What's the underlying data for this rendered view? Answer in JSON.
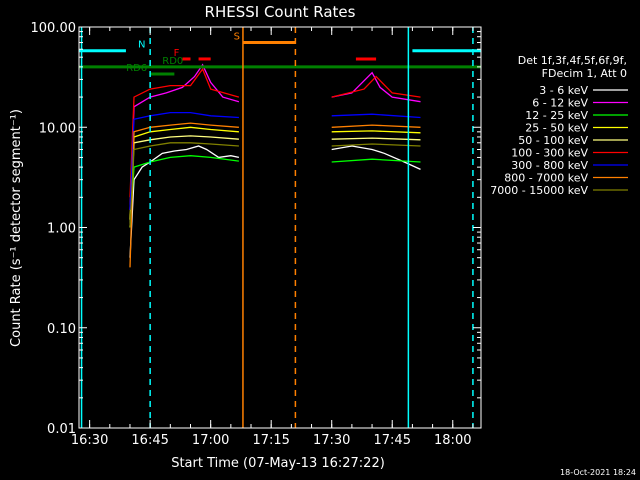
{
  "chart_data": {
    "type": "line",
    "title": "RHESSI Count Rates",
    "xlabel": "Start Time (07-May-13 16:27:22)",
    "ylabel": "Count Rate (s⁻¹ detector segment⁻¹)",
    "yscale": "log",
    "ylim": [
      0.01,
      100
    ],
    "xlim": [
      "16:27:22",
      "18:07:00"
    ],
    "x_ticks": [
      "16:30",
      "16:45",
      "17:00",
      "17:15",
      "17:30",
      "17:45",
      "18:00"
    ],
    "y_ticks": [
      "0.01",
      "0.10",
      "1.00",
      "10.00",
      "100.00"
    ],
    "legend": {
      "header_line1": "Det 1f,3f,4f,5f,6f,9f,",
      "header_line2": "FDecim 1, Att 0",
      "position": "right"
    },
    "series": [
      {
        "name": "3 - 6 keV",
        "color": "#ffffff",
        "x": [
          "16:40",
          "16:41",
          "16:43",
          "16:45",
          "16:48",
          "16:51",
          "16:54",
          "16:57",
          "16:59",
          "17:02",
          "17:05",
          "17:07"
        ],
        "values": [
          0.5,
          3.0,
          4.0,
          4.5,
          5.5,
          5.8,
          6.0,
          6.5,
          6.0,
          5.0,
          5.2,
          5.0
        ]
      },
      {
        "name": "6 - 12 keV",
        "color": "#ff00ff",
        "x": [
          "16:40",
          "16:41",
          "16:45",
          "16:49",
          "16:53",
          "16:56",
          "16:58",
          "17:00",
          "17:03",
          "17:07"
        ],
        "values": [
          1.5,
          16.0,
          20.0,
          22.0,
          25.0,
          32.0,
          42.0,
          28.0,
          20.0,
          18.0
        ]
      },
      {
        "name": "12 - 25 keV",
        "color": "#00ff00",
        "x": [
          "16:40",
          "16:41",
          "16:45",
          "16:50",
          "16:55",
          "17:00",
          "17:07"
        ],
        "values": [
          1.0,
          4.0,
          4.5,
          5.0,
          5.2,
          5.0,
          4.6
        ]
      },
      {
        "name": "25 - 50 keV",
        "color": "#ffff00",
        "x": [
          "16:40",
          "16:41",
          "16:45",
          "16:50",
          "16:55",
          "17:00",
          "17:07"
        ],
        "values": [
          1.2,
          8.0,
          9.0,
          9.5,
          10.0,
          9.5,
          9.0
        ]
      },
      {
        "name": "50 - 100 keV",
        "color": "#ffff80",
        "x": [
          "16:40",
          "16:41",
          "16:45",
          "16:50",
          "16:55",
          "17:00",
          "17:07"
        ],
        "values": [
          1.0,
          7.0,
          7.5,
          8.0,
          8.2,
          8.0,
          7.6
        ]
      },
      {
        "name": "100 - 300 keV",
        "color": "#ff0000",
        "x": [
          "16:40",
          "16:41",
          "16:45",
          "16:50",
          "16:55",
          "16:58",
          "17:00",
          "17:07"
        ],
        "values": [
          2.0,
          20.0,
          24.0,
          26.0,
          26.0,
          38.0,
          24.0,
          20.0
        ]
      },
      {
        "name": "300 - 800 keV",
        "color": "#0000ff",
        "x": [
          "16:40",
          "16:41",
          "16:45",
          "16:50",
          "16:55",
          "17:00",
          "17:07"
        ],
        "values": [
          1.5,
          12.0,
          13.0,
          14.0,
          14.0,
          13.0,
          12.5
        ]
      },
      {
        "name": "800 - 7000 keV",
        "color": "#ff8000",
        "x": [
          "16:40",
          "16:41",
          "16:45",
          "16:50",
          "16:55",
          "17:00",
          "17:07"
        ],
        "values": [
          0.4,
          9.0,
          10.0,
          10.5,
          11.0,
          10.5,
          10.0
        ]
      },
      {
        "name": "7000 - 15000 keV",
        "color": "#808000",
        "x": [
          "16:40",
          "16:41",
          "16:45",
          "16:50",
          "16:55",
          "17:00",
          "17:07"
        ],
        "values": [
          1.0,
          6.0,
          6.5,
          7.0,
          7.0,
          6.8,
          6.5
        ]
      }
    ],
    "series_after_gap": [
      {
        "name": "3 - 6 keV",
        "x": [
          "17:30",
          "17:35",
          "17:40",
          "17:43",
          "17:48",
          "17:52"
        ],
        "values": [
          6.0,
          6.5,
          6.0,
          5.5,
          4.5,
          3.8
        ]
      },
      {
        "name": "6 - 12 keV",
        "x": [
          "17:30",
          "17:35",
          "17:40",
          "17:42",
          "17:45",
          "17:52"
        ],
        "values": [
          20.0,
          22.0,
          35.0,
          25.0,
          20.0,
          18.0
        ]
      },
      {
        "name": "12 - 25 keV",
        "x": [
          "17:30",
          "17:40",
          "17:52"
        ],
        "values": [
          4.5,
          4.8,
          4.5
        ]
      },
      {
        "name": "25 - 50 keV",
        "x": [
          "17:30",
          "17:40",
          "17:52"
        ],
        "values": [
          9.0,
          9.2,
          8.8
        ]
      },
      {
        "name": "50 - 100 keV",
        "x": [
          "17:30",
          "17:40",
          "17:52"
        ],
        "values": [
          7.6,
          7.8,
          7.5
        ]
      },
      {
        "name": "100 - 300 keV",
        "x": [
          "17:30",
          "17:38",
          "17:41",
          "17:45",
          "17:52"
        ],
        "values": [
          20.0,
          24.0,
          32.0,
          22.0,
          20.0
        ]
      },
      {
        "name": "300 - 800 keV",
        "x": [
          "17:30",
          "17:40",
          "17:52"
        ],
        "values": [
          13.0,
          13.5,
          12.5
        ]
      },
      {
        "name": "800 - 7000 keV",
        "x": [
          "17:30",
          "17:40",
          "17:52"
        ],
        "values": [
          10.0,
          10.5,
          10.0
        ]
      },
      {
        "name": "7000 - 15000 keV",
        "x": [
          "17:30",
          "17:40",
          "17:52"
        ],
        "values": [
          6.5,
          6.8,
          6.5
        ]
      }
    ],
    "flags": [
      {
        "label": "N",
        "color": "#00ffff",
        "segments": [
          [
            "16:27:22",
            "16:39"
          ],
          [
            "17:50",
            "18:07"
          ]
        ],
        "level": 58
      },
      {
        "label": "S",
        "color": "#ff8000",
        "segments": [
          [
            "17:08",
            "17:21"
          ]
        ],
        "level": 70
      },
      {
        "label": "F",
        "color": "#ff0000",
        "segments": [
          [
            "16:53",
            "16:55"
          ],
          [
            "16:57",
            "17:00"
          ],
          [
            "17:36",
            "17:41"
          ]
        ],
        "level": 48
      },
      {
        "label": "RD0",
        "color": "#008000",
        "segments": [
          [
            "16:27:22",
            "18:07:00"
          ]
        ],
        "level": 40
      },
      {
        "label": "RD6",
        "color": "#008000",
        "segments": [
          [
            "16:45",
            "16:51"
          ]
        ],
        "level": 34
      }
    ],
    "vertical_lines": [
      {
        "time": "16:28",
        "color": "#00ffff",
        "style": "solid"
      },
      {
        "time": "16:45",
        "color": "#00ffff",
        "style": "dashed"
      },
      {
        "time": "17:08",
        "color": "#ff8000",
        "style": "solid"
      },
      {
        "time": "17:21",
        "color": "#ff8000",
        "style": "dashed"
      },
      {
        "time": "17:49",
        "color": "#00ffff",
        "style": "solid"
      },
      {
        "time": "18:05",
        "color": "#00ffff",
        "style": "dashed"
      }
    ],
    "grid": false
  },
  "timestamp": "18-Oct-2021 18:24"
}
